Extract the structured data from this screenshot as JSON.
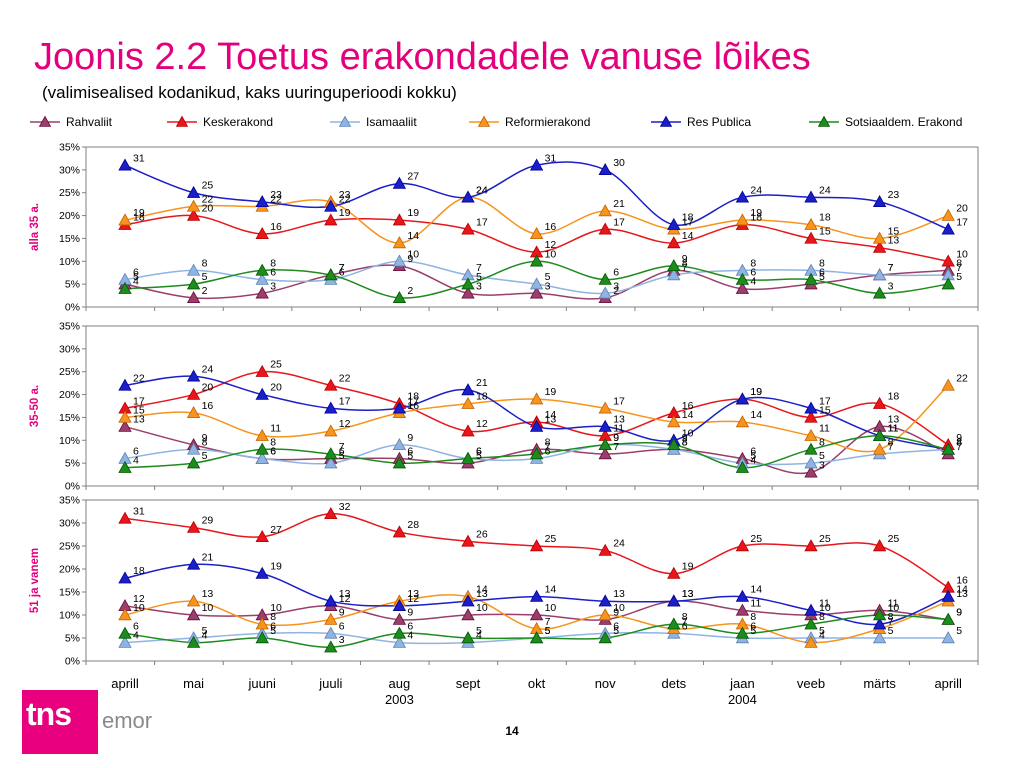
{
  "title": "Joonis 2.2 Toetus erakondadele vanuse lõikes",
  "subtitle": "(valimisealised kodanikud, kaks uuringuperioodi kokku)",
  "page_number": "14",
  "logo": {
    "text": "tns",
    "sub": "emor"
  },
  "chart_data": {
    "type": "line",
    "categories": [
      "aprill",
      "mai",
      "juuni",
      "juuli",
      "aug",
      "sept",
      "okt",
      "nov",
      "dets",
      "jaan",
      "veeb",
      "märts",
      "aprill"
    ],
    "year_labels": [
      {
        "index": 4,
        "label": "2003"
      },
      {
        "index": 9,
        "label": "2004"
      }
    ],
    "yticks": [
      "0%",
      "5%",
      "10%",
      "15%",
      "20%",
      "25%",
      "30%",
      "35%"
    ],
    "ylim": [
      0,
      35
    ],
    "legend": [
      {
        "name": "Rahvaliit",
        "color": "#9a3f6b",
        "marker": "triangle"
      },
      {
        "name": "Keskerakond",
        "color": "#e8161c",
        "marker": "triangle"
      },
      {
        "name": "Isamaaliit",
        "color": "#8fb4e3",
        "marker": "triangle"
      },
      {
        "name": "Reformierakond",
        "color": "#f7941d",
        "marker": "triangle"
      },
      {
        "name": "Res Publica",
        "color": "#1b1fc7",
        "marker": "triangle"
      },
      {
        "name": "Sotsiaaldem. Erakond",
        "color": "#1d8b1d",
        "marker": "triangle"
      }
    ],
    "panels": [
      {
        "label": "alla 35 a.",
        "series": [
          {
            "name": "Rahvaliit",
            "values": [
              5,
              2,
              3,
              7,
              9,
              3,
              3,
              2,
              8,
              4,
              5,
              7,
              8
            ]
          },
          {
            "name": "Keskerakond",
            "values": [
              18,
              20,
              16,
              19,
              19,
              17,
              12,
              17,
              14,
              18,
              15,
              13,
              10
            ]
          },
          {
            "name": "Isamaaliit",
            "values": [
              6,
              8,
              6,
              6,
              10,
              7,
              5,
              3,
              7,
              8,
              8,
              7,
              7
            ]
          },
          {
            "name": "Reformierakond",
            "values": [
              19,
              22,
              22,
              23,
              14,
              24,
              16,
              21,
              17,
              19,
              18,
              15,
              20
            ]
          },
          {
            "name": "Res Publica",
            "values": [
              31,
              25,
              23,
              22,
              27,
              24,
              31,
              30,
              18,
              24,
              24,
              23,
              17
            ]
          },
          {
            "name": "Sotsiaaldem. Erakond",
            "values": [
              4,
              5,
              8,
              7,
              2,
              5,
              10,
              6,
              9,
              6,
              6,
              3,
              5
            ]
          }
        ]
      },
      {
        "label": "35-50 a.",
        "series": [
          {
            "name": "Rahvaliit",
            "values": [
              13,
              9,
              6,
              6,
              6,
              5,
              8,
              7,
              8,
              6,
              3,
              13,
              7
            ]
          },
          {
            "name": "Keskerakond",
            "values": [
              17,
              20,
              25,
              22,
              18,
              12,
              14,
              11,
              16,
              19,
              15,
              18,
              9
            ]
          },
          {
            "name": "Isamaaliit",
            "values": [
              6,
              8,
              6,
              5,
              9,
              6,
              6,
              9,
              8,
              5,
              5,
              7,
              8
            ]
          },
          {
            "name": "Reformierakond",
            "values": [
              15,
              16,
              11,
              12,
              16,
              18,
              19,
              17,
              14,
              14,
              11,
              8,
              22
            ]
          },
          {
            "name": "Res Publica",
            "values": [
              22,
              24,
              20,
              17,
              17,
              21,
              13,
              13,
              10,
              19,
              17,
              11,
              8
            ]
          },
          {
            "name": "Sotsiaaldem. Erakond",
            "values": [
              4,
              5,
              8,
              7,
              5,
              6,
              7,
              9,
              9,
              4,
              8,
              11,
              8
            ]
          }
        ]
      },
      {
        "label": "51 ja vanem",
        "series": [
          {
            "name": "Rahvaliit",
            "values": [
              12,
              10,
              10,
              12,
              9,
              10,
              10,
              9,
              13,
              11,
              10,
              11,
              9
            ]
          },
          {
            "name": "Keskerakond",
            "values": [
              31,
              29,
              27,
              32,
              28,
              26,
              25,
              24,
              19,
              25,
              25,
              25,
              16
            ]
          },
          {
            "name": "Isamaaliit",
            "values": [
              4,
              5,
              6,
              6,
              4,
              4,
              5,
              6,
              6,
              5,
              5,
              5,
              5
            ]
          },
          {
            "name": "Reformierakond",
            "values": [
              10,
              13,
              8,
              9,
              13,
              14,
              7,
              10,
              7,
              8,
              4,
              7,
              13
            ]
          },
          {
            "name": "Res Publica",
            "values": [
              18,
              21,
              19,
              13,
              12,
              13,
              14,
              13,
              13,
              14,
              11,
              8,
              14
            ]
          },
          {
            "name": "Sotsiaaldem. Erakond",
            "values": [
              6,
              4,
              5,
              3,
              6,
              5,
              5,
              5,
              8,
              6,
              8,
              10,
              9
            ]
          }
        ]
      }
    ]
  }
}
